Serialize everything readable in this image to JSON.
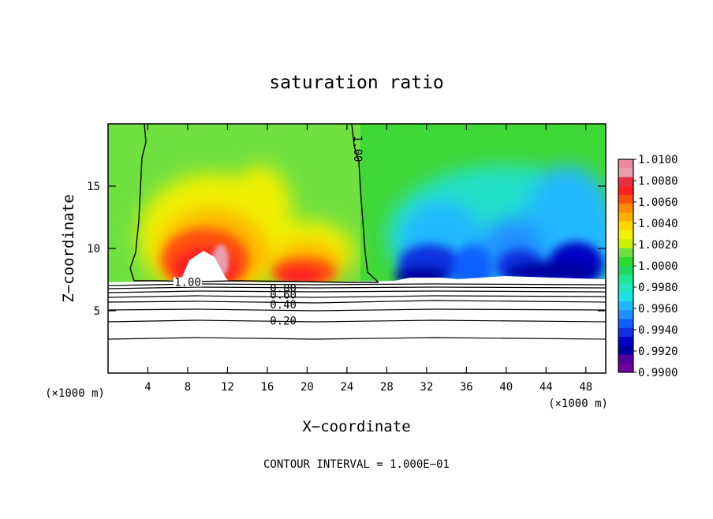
{
  "chart_data": {
    "type": "heatmap",
    "title": "saturation ratio",
    "xlabel": "X−coordinate",
    "ylabel": "Z−coordinate",
    "x_unit": "(×1000 m)",
    "z_unit": "(×1000 m)",
    "xlim": [
      0,
      50
    ],
    "ylim": [
      0,
      20
    ],
    "x_ticks": [
      4,
      8,
      12,
      16,
      20,
      24,
      28,
      32,
      36,
      40,
      44,
      48
    ],
    "y_ticks": [
      5,
      10,
      15
    ],
    "footer": "CONTOUR INTERVAL = 1.000E−01",
    "colorbar": {
      "levels": [
        "1.0100",
        "1.0080",
        "1.0060",
        "1.0040",
        "1.0020",
        "1.0000",
        "0.9980",
        "0.9960",
        "0.9940",
        "0.9920",
        "0.9900"
      ],
      "vmin": 0.99,
      "vmax": 1.01,
      "colors": [
        "#e88aa0",
        "#e8a0b0",
        "#e83040",
        "#ff2020",
        "#ff5010",
        "#ff8c00",
        "#ffb000",
        "#ffd800",
        "#f0f000",
        "#c8f000",
        "#70e040",
        "#30d830",
        "#20d860",
        "#20e890",
        "#20e8c0",
        "#20e0e8",
        "#20b8ff",
        "#2090ff",
        "#1060ff",
        "#1030e0",
        "#0000c8",
        "#0000a0",
        "#5000a0",
        "#7000a0"
      ]
    },
    "contours": [
      {
        "label": "1.00",
        "label_x": 8,
        "label_z": 7.3
      },
      {
        "label": "1.00",
        "label_x": 25.1,
        "label_z": 18
      },
      {
        "label": "0.80",
        "label_x": 17.6,
        "label_z": 6.8
      },
      {
        "label": "0.60",
        "label_x": 17.6,
        "label_z": 6.3
      },
      {
        "label": "0.40",
        "label_x": 17.6,
        "label_z": 5.5
      },
      {
        "label": "0.20",
        "label_x": 17.6,
        "label_z": 4.2
      }
    ],
    "features": [
      {
        "kind": "supersaturated-plume",
        "x_center": 11,
        "z_peak": 12,
        "max_ratio": 1.008
      },
      {
        "kind": "supersaturated-plume",
        "x_center": 20,
        "z_peak": 10.5,
        "max_ratio": 1.008
      },
      {
        "kind": "subsaturated-region",
        "x_range": [
          28,
          50
        ],
        "z_range": [
          7,
          15
        ],
        "min_ratio": 0.99
      }
    ]
  }
}
